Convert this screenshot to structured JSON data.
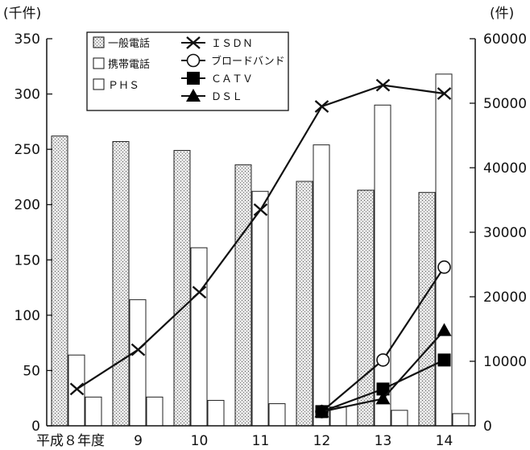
{
  "chart_data": {
    "type": "bar",
    "left_axis_unit": "(千件)",
    "right_axis_unit": "(件)",
    "categories": [
      "平成８年度",
      "9",
      "10",
      "11",
      "12",
      "13",
      "14"
    ],
    "left_ylim": [
      0,
      350
    ],
    "left_yticks": [
      "0",
      "50",
      "100",
      "150",
      "200",
      "250",
      "300",
      "350"
    ],
    "right_ylim": [
      0,
      60000
    ],
    "right_yticks": [
      "0",
      "10000",
      "20000",
      "30000",
      "40000",
      "50000",
      "60000"
    ],
    "bar_series": [
      {
        "name": "一般電話",
        "pattern": "stipple",
        "values": [
          262,
          257,
          249,
          236,
          221,
          213,
          211
        ]
      },
      {
        "name": "携帯電話",
        "pattern": "white",
        "values": [
          64,
          114,
          161,
          212,
          254,
          290,
          318
        ]
      },
      {
        "name": "ＰＨＳ",
        "pattern": "white",
        "values": [
          26,
          26,
          23,
          20,
          17,
          14,
          11
        ]
      }
    ],
    "line_series": [
      {
        "name": "ＩＳＤＮ",
        "marker": "x",
        "x_index": [
          0,
          1,
          2,
          3,
          4,
          5,
          6
        ],
        "values": [
          5700,
          11800,
          20700,
          33500,
          49500,
          52800,
          51500
        ]
      },
      {
        "name": "ブロードバンド",
        "marker": "open-circle",
        "x_index": [
          4,
          5,
          6
        ],
        "values": [
          2200,
          10200,
          24600
        ]
      },
      {
        "name": "ＣＡＴＶ",
        "marker": "filled-square",
        "x_index": [
          4,
          5,
          6
        ],
        "values": [
          2200,
          5700,
          10200
        ]
      },
      {
        "name": "ＤＳＬ",
        "marker": "filled-triangle",
        "x_index": [
          4,
          5,
          6
        ],
        "values": [
          2200,
          4200,
          14800
        ]
      }
    ],
    "legend_position": "top-left"
  }
}
